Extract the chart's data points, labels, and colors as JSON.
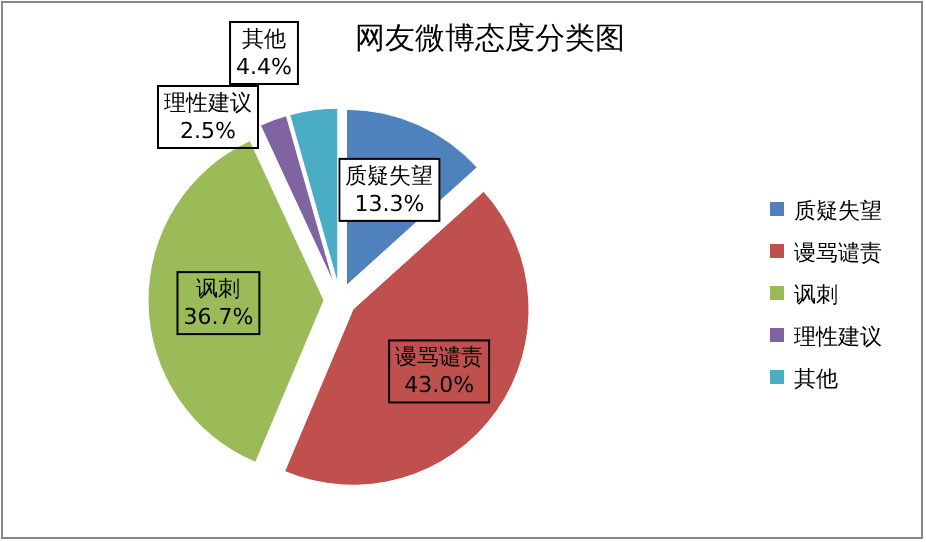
{
  "chart_data": {
    "type": "pie",
    "title": "网友微博态度分类图",
    "categories": [
      "质疑失望",
      "谩骂谴责",
      "讽刺",
      "理性建议",
      "其他"
    ],
    "values": [
      13.3,
      43.0,
      36.7,
      2.5,
      4.4
    ],
    "value_labels": [
      "13.3%",
      "43.0%",
      "36.7%",
      "2.5%",
      "4.4%"
    ],
    "colors": [
      "#4f81bd",
      "#c0504d",
      "#9bbb59",
      "#8064a2",
      "#4bacc6"
    ],
    "legend": "right"
  }
}
